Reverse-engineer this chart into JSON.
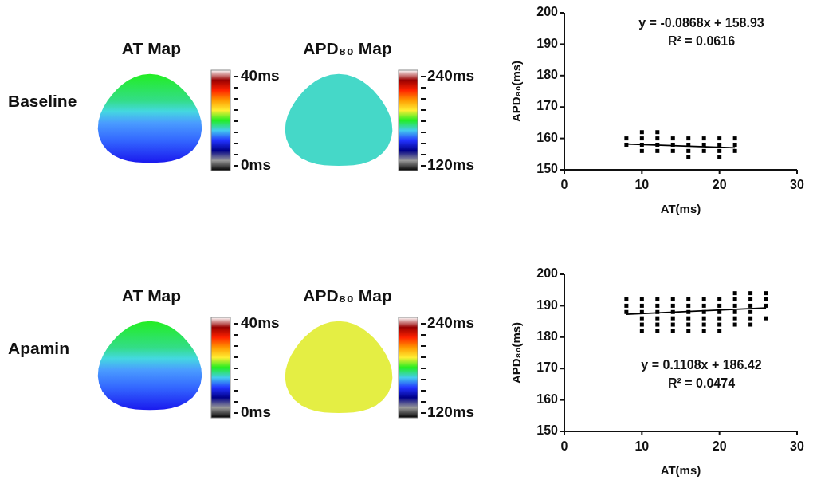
{
  "chart_data": [
    {
      "type": "other",
      "annotations": [
        "Baseline",
        "AT Map",
        "40ms",
        "0ms",
        "APD₈₀ Map",
        "240ms",
        "120ms"
      ]
    },
    {
      "type": "scatter",
      "xlabel": "AT(ms)",
      "ylabel": "APD₈₀(ms)",
      "xlim": [
        0,
        30
      ],
      "ylim": [
        150,
        200
      ],
      "xticks": [
        0,
        10,
        20,
        30
      ],
      "yticks": [
        150,
        160,
        170,
        180,
        190,
        200
      ],
      "annotations": [
        "y = -0.0868x + 158.93",
        "R² = 0.0616"
      ],
      "series": [
        {
          "type": "scatter",
          "marker": "square",
          "color": "#000000",
          "x": [
            8,
            8,
            10,
            10,
            10,
            10,
            12,
            12,
            12,
            12,
            14,
            14,
            14,
            16,
            16,
            16,
            16,
            18,
            18,
            18,
            20,
            20,
            20,
            20,
            22,
            22,
            22
          ],
          "values": [
            158,
            160,
            156,
            158,
            160,
            162,
            156,
            158,
            160,
            162,
            156,
            158,
            160,
            154,
            156,
            158,
            160,
            156,
            158,
            160,
            154,
            156,
            158,
            160,
            156,
            158,
            160
          ]
        },
        {
          "type": "line",
          "color": "#000000",
          "x": [
            8,
            22
          ],
          "values": [
            158.2,
            157
          ]
        }
      ]
    },
    {
      "type": "other",
      "annotations": [
        "Apamin",
        "AT Map",
        "40ms",
        "0ms",
        "APD₈₀ Map",
        "240ms",
        "120ms"
      ]
    },
    {
      "type": "scatter",
      "xlabel": "AT(ms)",
      "ylabel": "APD₈₀(ms)",
      "xlim": [
        0,
        30
      ],
      "ylim": [
        150,
        200
      ],
      "xticks": [
        0,
        10,
        20,
        30
      ],
      "yticks": [
        150,
        160,
        170,
        180,
        190,
        200
      ],
      "annotations": [
        "y = 0.1108x + 186.42",
        "R² = 0.0474"
      ],
      "series": [
        {
          "type": "scatter",
          "marker": "square",
          "color": "#000000",
          "x": [
            8,
            8,
            8,
            10,
            10,
            10,
            10,
            10,
            10,
            12,
            12,
            12,
            12,
            12,
            12,
            14,
            14,
            14,
            14,
            14,
            14,
            16,
            16,
            16,
            16,
            16,
            16,
            18,
            18,
            18,
            18,
            18,
            18,
            20,
            20,
            20,
            20,
            20,
            20,
            22,
            22,
            22,
            22,
            22,
            22,
            24,
            24,
            24,
            24,
            24,
            24,
            26,
            26,
            26,
            26
          ],
          "values": [
            188,
            190,
            192,
            182,
            184,
            186,
            188,
            190,
            192,
            182,
            184,
            186,
            188,
            190,
            192,
            182,
            184,
            186,
            188,
            190,
            192,
            182,
            184,
            186,
            188,
            190,
            192,
            182,
            184,
            186,
            188,
            190,
            192,
            182,
            184,
            186,
            188,
            190,
            192,
            184,
            186,
            188,
            190,
            192,
            194,
            184,
            186,
            188,
            190,
            192,
            194,
            186,
            190,
            192,
            194
          ]
        },
        {
          "type": "line",
          "color": "#000000",
          "x": [
            8,
            26
          ],
          "values": [
            187.3,
            189.3
          ]
        }
      ]
    }
  ]
}
